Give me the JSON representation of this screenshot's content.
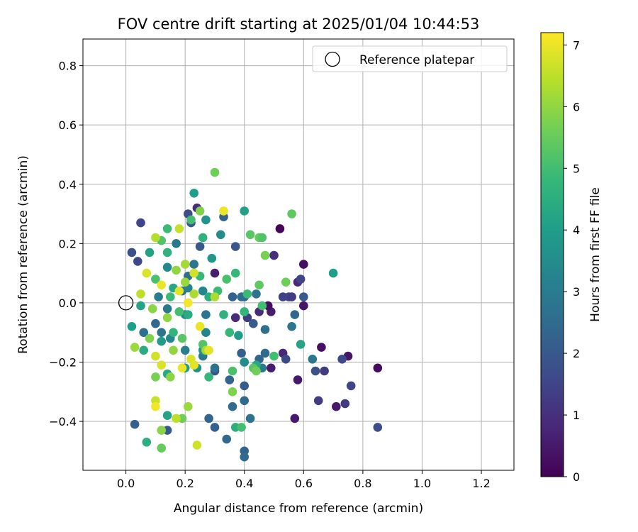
{
  "chart_data": {
    "type": "scatter",
    "title": "FOV centre drift starting at 2025/01/04 10:44:53",
    "xlabel": "Angular distance from reference (arcmin)",
    "ylabel": "Rotation from reference (arcmin)",
    "xlim": [
      -0.145,
      1.31
    ],
    "ylim": [
      -0.565,
      0.89
    ],
    "xticks": [
      0.0,
      0.2,
      0.4,
      0.6,
      0.8,
      1.0,
      1.2
    ],
    "xtick_labels": [
      "0.0",
      "0.2",
      "0.4",
      "0.6",
      "0.8",
      "1.0",
      "1.2"
    ],
    "yticks": [
      -0.4,
      -0.2,
      0.0,
      0.2,
      0.4,
      0.6,
      0.8
    ],
    "ytick_labels": [
      "−0.4",
      "−0.2",
      "0.0",
      "0.2",
      "0.4",
      "0.6",
      "0.8"
    ],
    "grid": true,
    "legend": {
      "position": "top-right",
      "entries": [
        "Reference platepar"
      ]
    },
    "reference_point": {
      "x": 0.0,
      "y": 0.0
    },
    "colorbar": {
      "label": "Hours from first FF file",
      "range": [
        0,
        7.2
      ],
      "ticks": [
        0,
        1,
        2,
        3,
        4,
        5,
        6,
        7
      ],
      "tick_labels": [
        "0",
        "1",
        "2",
        "3",
        "4",
        "5",
        "6",
        "7"
      ],
      "colormap": "viridis"
    },
    "colormap_stops": [
      "#440154",
      "#482878",
      "#3e4989",
      "#31688e",
      "#26828e",
      "#1f9e89",
      "#35b779",
      "#6ece58",
      "#b5de2b",
      "#fde725"
    ],
    "series": [
      {
        "points": [
          {
            "x": 0.52,
            "y": 0.25,
            "t": 0.1
          },
          {
            "x": 0.6,
            "y": 0.13,
            "t": 0.3
          },
          {
            "x": 0.85,
            "y": -0.22,
            "t": 0.2
          },
          {
            "x": 0.75,
            "y": -0.18,
            "t": 0.4
          },
          {
            "x": 0.71,
            "y": -0.35,
            "t": 0.5
          },
          {
            "x": 0.66,
            "y": -0.15,
            "t": 0.3
          },
          {
            "x": 0.57,
            "y": -0.39,
            "t": 0.5
          },
          {
            "x": 0.6,
            "y": -0.01,
            "t": 0.4
          },
          {
            "x": 0.58,
            "y": -0.26,
            "t": 0.5
          },
          {
            "x": 0.49,
            "y": -0.22,
            "t": 0.6
          },
          {
            "x": 0.53,
            "y": -0.17,
            "t": 0.8
          },
          {
            "x": 0.58,
            "y": 0.07,
            "t": 0.8
          },
          {
            "x": 0.5,
            "y": 0.16,
            "t": 1.0
          },
          {
            "x": 0.49,
            "y": -0.03,
            "t": 0.6
          },
          {
            "x": 0.48,
            "y": -0.01,
            "t": 0.3
          },
          {
            "x": 0.45,
            "y": -0.03,
            "t": 0.9
          },
          {
            "x": 0.3,
            "y": 0.1,
            "t": 0.6
          },
          {
            "x": 0.24,
            "y": 0.32,
            "t": 0.9
          },
          {
            "x": 0.37,
            "y": -0.05,
            "t": 0.9
          },
          {
            "x": 0.41,
            "y": -0.05,
            "t": 1.3
          },
          {
            "x": 0.65,
            "y": -0.33,
            "t": 1.3
          },
          {
            "x": 0.74,
            "y": -0.34,
            "t": 1.2
          },
          {
            "x": 0.76,
            "y": -0.28,
            "t": 1.5
          },
          {
            "x": 0.67,
            "y": -0.23,
            "t": 1.2
          },
          {
            "x": 0.73,
            "y": -0.19,
            "t": 1.6
          },
          {
            "x": 0.85,
            "y": -0.42,
            "t": 1.7
          },
          {
            "x": 0.64,
            "y": -0.23,
            "t": 1.8
          },
          {
            "x": 0.54,
            "y": -0.19,
            "t": 1.6
          },
          {
            "x": 0.55,
            "y": 0.02,
            "t": 1.5
          },
          {
            "x": 0.56,
            "y": 0.02,
            "t": 1.3
          },
          {
            "x": 0.53,
            "y": 0.02,
            "t": 1.4
          },
          {
            "x": 0.59,
            "y": 0.08,
            "t": 1.5
          },
          {
            "x": 0.6,
            "y": 0.02,
            "t": 2.0
          },
          {
            "x": 0.05,
            "y": 0.27,
            "t": 1.5
          },
          {
            "x": 0.02,
            "y": 0.17,
            "t": 1.8
          },
          {
            "x": 0.04,
            "y": 0.14,
            "t": 1.6
          },
          {
            "x": 0.21,
            "y": 0.3,
            "t": 1.7
          },
          {
            "x": 0.25,
            "y": 0.19,
            "t": 2.0
          },
          {
            "x": 0.37,
            "y": 0.19,
            "t": 1.9
          },
          {
            "x": 0.33,
            "y": 0.29,
            "t": 2.2
          },
          {
            "x": 0.22,
            "y": 0.27,
            "t": 2.1
          },
          {
            "x": 0.03,
            "y": -0.41,
            "t": 2.2
          },
          {
            "x": 0.14,
            "y": -0.43,
            "t": 2.0
          },
          {
            "x": 0.34,
            "y": -0.46,
            "t": 2.4
          },
          {
            "x": 0.4,
            "y": -0.5,
            "t": 2.3
          },
          {
            "x": 0.4,
            "y": -0.52,
            "t": 2.5
          },
          {
            "x": 0.3,
            "y": -0.42,
            "t": 2.2
          },
          {
            "x": 0.28,
            "y": -0.39,
            "t": 2.3
          },
          {
            "x": 0.4,
            "y": -0.33,
            "t": 2.5
          },
          {
            "x": 0.4,
            "y": -0.28,
            "t": 2.1
          },
          {
            "x": 0.36,
            "y": -0.35,
            "t": 2.5
          },
          {
            "x": 0.42,
            "y": -0.39,
            "t": 2.7
          },
          {
            "x": 0.35,
            "y": -0.26,
            "t": 2.3
          },
          {
            "x": 0.3,
            "y": -0.23,
            "t": 1.8
          },
          {
            "x": 0.39,
            "y": -0.17,
            "t": 2.2
          },
          {
            "x": 0.45,
            "y": -0.19,
            "t": 2.3
          },
          {
            "x": 0.47,
            "y": -0.17,
            "t": 2.5
          },
          {
            "x": 0.47,
            "y": -0.09,
            "t": 2.6
          },
          {
            "x": 0.43,
            "y": -0.07,
            "t": 2.1
          },
          {
            "x": 0.4,
            "y": 0.02,
            "t": 2.3
          },
          {
            "x": 0.44,
            "y": 0.03,
            "t": 2.7
          },
          {
            "x": 0.39,
            "y": 0.02,
            "t": 2.6
          },
          {
            "x": 0.36,
            "y": 0.02,
            "t": 2.2
          },
          {
            "x": 0.57,
            "y": -0.04,
            "t": 2.4
          },
          {
            "x": 0.56,
            "y": -0.08,
            "t": 2.8
          },
          {
            "x": 0.63,
            "y": -0.19,
            "t": 2.9
          },
          {
            "x": 0.46,
            "y": -0.22,
            "t": 3.0
          },
          {
            "x": 0.4,
            "y": -0.2,
            "t": 3.5
          },
          {
            "x": 0.3,
            "y": -0.22,
            "t": 2.7
          },
          {
            "x": 0.26,
            "y": -0.18,
            "t": 2.9
          },
          {
            "x": 0.2,
            "y": -0.16,
            "t": 3.1
          },
          {
            "x": 0.15,
            "y": -0.12,
            "t": 3.3
          },
          {
            "x": 0.12,
            "y": -0.1,
            "t": 2.8
          },
          {
            "x": 0.06,
            "y": -0.1,
            "t": 2.6
          },
          {
            "x": 0.1,
            "y": -0.07,
            "t": 2.4
          },
          {
            "x": 0.14,
            "y": -0.02,
            "t": 2.9
          },
          {
            "x": 0.19,
            "y": 0.04,
            "t": 2.7
          },
          {
            "x": 0.21,
            "y": 0.05,
            "t": 3.2
          },
          {
            "x": 0.23,
            "y": 0.13,
            "t": 2.8
          },
          {
            "x": 0.26,
            "y": 0.04,
            "t": 3.3
          },
          {
            "x": 0.21,
            "y": 0.09,
            "t": 2.6
          },
          {
            "x": 0.17,
            "y": 0.2,
            "t": 2.9
          },
          {
            "x": 0.14,
            "y": 0.12,
            "t": 3.4
          },
          {
            "x": 0.11,
            "y": 0.02,
            "t": 3.0
          },
          {
            "x": 0.2,
            "y": -0.04,
            "t": 3.4
          },
          {
            "x": 0.27,
            "y": -0.04,
            "t": 2.7
          },
          {
            "x": 0.24,
            "y": -0.22,
            "t": 3.6
          },
          {
            "x": 0.27,
            "y": -0.1,
            "t": 3.2
          },
          {
            "x": 0.32,
            "y": 0.23,
            "t": 3.5
          },
          {
            "x": 0.27,
            "y": 0.28,
            "t": 3.7
          },
          {
            "x": 0.29,
            "y": 0.15,
            "t": 3.8
          },
          {
            "x": 0.23,
            "y": 0.37,
            "t": 4.0
          },
          {
            "x": 0.4,
            "y": 0.31,
            "t": 4.1
          },
          {
            "x": 0.7,
            "y": 0.1,
            "t": 4.0
          },
          {
            "x": 0.59,
            "y": -0.14,
            "t": 4.2
          },
          {
            "x": 0.38,
            "y": -0.11,
            "t": 3.9
          },
          {
            "x": 0.37,
            "y": -0.42,
            "t": 4.5
          },
          {
            "x": 0.26,
            "y": -0.16,
            "t": 3.8
          },
          {
            "x": 0.2,
            "y": -0.22,
            "t": 4.0
          },
          {
            "x": 0.14,
            "y": -0.24,
            "t": 4.3
          },
          {
            "x": 0.14,
            "y": -0.38,
            "t": 4.2
          },
          {
            "x": 0.07,
            "y": -0.47,
            "t": 4.5
          },
          {
            "x": 0.12,
            "y": -0.13,
            "t": 3.9
          },
          {
            "x": 0.06,
            "y": -0.16,
            "t": 4.4
          },
          {
            "x": 0.02,
            "y": -0.08,
            "t": 4.0
          },
          {
            "x": 0.05,
            "y": -0.01,
            "t": 4.2
          },
          {
            "x": 0.08,
            "y": 0.17,
            "t": 4.1
          },
          {
            "x": 0.14,
            "y": 0.17,
            "t": 4.6
          },
          {
            "x": 0.16,
            "y": 0.05,
            "t": 4.3
          },
          {
            "x": 0.16,
            "y": -0.1,
            "t": 4.7
          },
          {
            "x": 0.21,
            "y": -0.04,
            "t": 4.4
          },
          {
            "x": 0.25,
            "y": 0.09,
            "t": 4.8
          },
          {
            "x": 0.28,
            "y": 0.02,
            "t": 4.5
          },
          {
            "x": 0.31,
            "y": 0.04,
            "t": 4.9
          },
          {
            "x": 0.33,
            "y": -0.04,
            "t": 4.6
          },
          {
            "x": 0.35,
            "y": -0.1,
            "t": 4.8
          },
          {
            "x": 0.44,
            "y": -0.21,
            "t": 4.3
          },
          {
            "x": 0.4,
            "y": -0.03,
            "t": 4.7
          },
          {
            "x": 0.46,
            "y": -0.01,
            "t": 5.0
          },
          {
            "x": 0.41,
            "y": 0.03,
            "t": 4.9
          },
          {
            "x": 0.34,
            "y": 0.08,
            "t": 5.1
          },
          {
            "x": 0.37,
            "y": 0.1,
            "t": 4.8
          },
          {
            "x": 0.26,
            "y": 0.22,
            "t": 4.6
          },
          {
            "x": 0.22,
            "y": 0.28,
            "t": 5.0
          },
          {
            "x": 0.14,
            "y": 0.25,
            "t": 4.9
          },
          {
            "x": 0.12,
            "y": 0.21,
            "t": 5.2
          },
          {
            "x": 0.1,
            "y": 0.08,
            "t": 5.1
          },
          {
            "x": 0.15,
            "y": 0.02,
            "t": 4.9
          },
          {
            "x": 0.18,
            "y": -0.03,
            "t": 5.0
          },
          {
            "x": 0.19,
            "y": -0.12,
            "t": 5.3
          },
          {
            "x": 0.26,
            "y": -0.14,
            "t": 5.2
          },
          {
            "x": 0.28,
            "y": -0.25,
            "t": 4.8
          },
          {
            "x": 0.36,
            "y": -0.23,
            "t": 5.1
          },
          {
            "x": 0.39,
            "y": -0.42,
            "t": 5.0
          },
          {
            "x": 0.43,
            "y": -0.22,
            "t": 5.3
          },
          {
            "x": 0.5,
            "y": -0.18,
            "t": 5.0
          },
          {
            "x": 0.45,
            "y": 0.06,
            "t": 5.4
          },
          {
            "x": 0.42,
            "y": 0.23,
            "t": 5.3
          },
          {
            "x": 0.45,
            "y": 0.22,
            "t": 5.5
          },
          {
            "x": 0.46,
            "y": 0.22,
            "t": 5.2
          },
          {
            "x": 0.56,
            "y": 0.3,
            "t": 5.4
          },
          {
            "x": 0.54,
            "y": 0.07,
            "t": 5.6
          },
          {
            "x": 0.3,
            "y": 0.44,
            "t": 5.6
          },
          {
            "x": 0.25,
            "y": 0.31,
            "t": 5.8
          },
          {
            "x": 0.47,
            "y": 0.16,
            "t": 5.7
          },
          {
            "x": 0.36,
            "y": -0.3,
            "t": 5.8
          },
          {
            "x": 0.44,
            "y": -0.23,
            "t": 5.6
          },
          {
            "x": 0.12,
            "y": -0.49,
            "t": 5.5
          },
          {
            "x": 0.19,
            "y": -0.39,
            "t": 5.6
          },
          {
            "x": 0.15,
            "y": -0.25,
            "t": 5.9
          },
          {
            "x": 0.1,
            "y": -0.25,
            "t": 5.7
          },
          {
            "x": 0.08,
            "y": -0.12,
            "t": 5.8
          },
          {
            "x": 0.03,
            "y": -0.15,
            "t": 6.1
          },
          {
            "x": 0.09,
            "y": -0.02,
            "t": 5.9
          },
          {
            "x": 0.14,
            "y": -0.05,
            "t": 6.0
          },
          {
            "x": 0.2,
            "y": 0.13,
            "t": 6.2
          },
          {
            "x": 0.17,
            "y": 0.11,
            "t": 6.0
          },
          {
            "x": 0.2,
            "y": 0.07,
            "t": 6.1
          },
          {
            "x": 0.23,
            "y": 0.03,
            "t": 6.3
          },
          {
            "x": 0.25,
            "y": -0.08,
            "t": 6.4
          },
          {
            "x": 0.27,
            "y": -0.16,
            "t": 6.2
          },
          {
            "x": 0.17,
            "y": -0.39,
            "t": 6.5
          },
          {
            "x": 0.1,
            "y": -0.33,
            "t": 6.6
          },
          {
            "x": 0.16,
            "y": -0.16,
            "t": 6.0
          },
          {
            "x": 0.1,
            "y": -0.18,
            "t": 6.7
          },
          {
            "x": 0.05,
            "y": 0.03,
            "t": 6.5
          },
          {
            "x": 0.1,
            "y": 0.22,
            "t": 6.4
          },
          {
            "x": 0.18,
            "y": 0.25,
            "t": 6.6
          },
          {
            "x": 0.23,
            "y": 0.1,
            "t": 6.7
          },
          {
            "x": 0.3,
            "y": 0.02,
            "t": 6.3
          },
          {
            "x": 0.33,
            "y": 0.31,
            "t": 7.0
          },
          {
            "x": 0.07,
            "y": 0.1,
            "t": 6.8
          },
          {
            "x": 0.12,
            "y": 0.06,
            "t": 7.0
          },
          {
            "x": 0.18,
            "y": 0.04,
            "t": 6.9
          },
          {
            "x": 0.21,
            "y": 0.0,
            "t": 7.1
          },
          {
            "x": 0.25,
            "y": -0.08,
            "t": 7.0
          },
          {
            "x": 0.28,
            "y": -0.16,
            "t": 6.9
          },
          {
            "x": 0.22,
            "y": -0.19,
            "t": 6.8
          },
          {
            "x": 0.19,
            "y": -0.22,
            "t": 7.0
          },
          {
            "x": 0.23,
            "y": -0.21,
            "t": 6.9
          },
          {
            "x": 0.12,
            "y": -0.21,
            "t": 6.8
          },
          {
            "x": 0.1,
            "y": -0.35,
            "t": 7.1
          },
          {
            "x": 0.24,
            "y": -0.48,
            "t": 6.7
          },
          {
            "x": 0.12,
            "y": -0.43,
            "t": 5.9
          },
          {
            "x": 0.21,
            "y": -0.35,
            "t": 6.1
          }
        ]
      }
    ]
  }
}
